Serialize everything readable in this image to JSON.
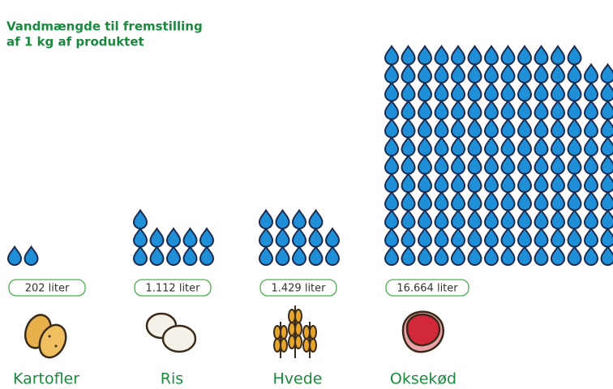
{
  "chart_data": {
    "type": "pictograph",
    "title": [
      "Vandmængde til fremstilling",
      "af 1 kg af produktet"
    ],
    "categories": [
      "Kartofler",
      "Ris",
      "Hvede",
      "Oksekød"
    ],
    "values": [
      202,
      1112,
      1429,
      16664
    ],
    "value_labels": [
      "202 liter",
      "1.112 liter",
      "1.429 liter",
      "16.664 liter"
    ],
    "color": "#1f8fd8"
  }
}
